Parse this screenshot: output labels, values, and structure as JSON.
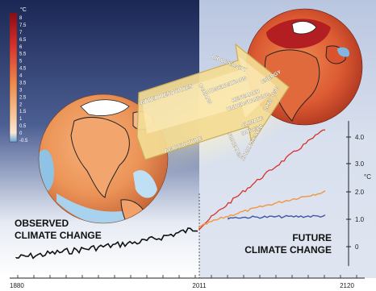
{
  "colorbar": {
    "unit": "°C",
    "ticks": [
      "8",
      "7.5",
      "7",
      "6.5",
      "6",
      "5.5",
      "5",
      "4.5",
      "4",
      "3.5",
      "3",
      "2.5",
      "2",
      "1.5",
      "1",
      "0.5",
      "0",
      "-0.5"
    ]
  },
  "right_axis": {
    "unit": "°C",
    "ticks": [
      "4.0",
      "3.0",
      "2.0",
      "1.0",
      "0"
    ]
  },
  "timeline": {
    "start_label": "1880",
    "split_label": "2011",
    "end_label": "2120"
  },
  "panels": {
    "observed_line1": "OBSERVED",
    "observed_line2": "CLIMATE CHANGE",
    "future_line1": "FUTURE",
    "future_line2": "CLIMATE CHANGE"
  },
  "arrow_labels": {
    "water_resources": "WATER RESOURCES",
    "oceans": "OCEANS",
    "biodiversity": "BIODIVERSITY",
    "energy": "ENERGY",
    "observations": "OBSERVATIONS",
    "research_line1": "RESEARCH",
    "research_line2": "UNDERSTANDING",
    "land_use": "LAND USE",
    "climate_line1": "CLIMATE",
    "climate_line2": "MODELS",
    "human_health": "HUMAN HEALTH",
    "fisheries": "FISHERIES",
    "agriculture": "AGRICULTURE"
  },
  "colors": {
    "left_bg_top": "#1c2a5c",
    "right_bg": "#d4dcec",
    "observed_line": "#111111",
    "future_red": "#d8302a",
    "future_orange": "#ef9a4a",
    "future_blue": "#3d56a8",
    "arrow_fill": "#f3dc93"
  }
}
